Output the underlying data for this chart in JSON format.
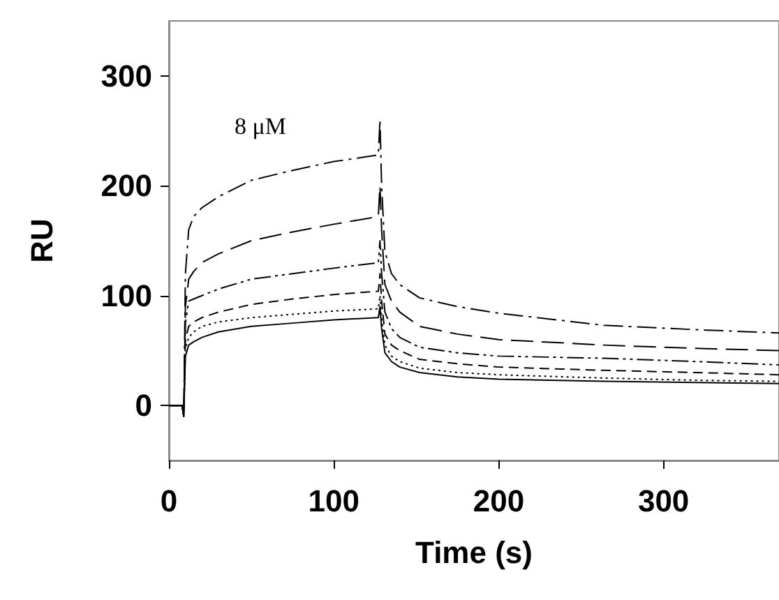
{
  "chart_data": {
    "type": "line",
    "xlabel": "Time (s)",
    "ylabel": "RU",
    "x": [
      0,
      8,
      9,
      10,
      12,
      15,
      20,
      30,
      50,
      75,
      100,
      127,
      128,
      129,
      131,
      135,
      140,
      152,
      175,
      200,
      264,
      320,
      370
    ],
    "series": [
      {
        "color": "#000000",
        "line_style": "dashdot",
        "values": [
          0,
          0,
          -10,
          120,
          160,
          172,
          180,
          190,
          205,
          214,
          222,
          228,
          260,
          200,
          140,
          120,
          110,
          98,
          90,
          84,
          73,
          69,
          66
        ]
      },
      {
        "color": "#000000",
        "line_style": "longdash",
        "values": [
          0,
          0,
          -10,
          90,
          115,
          122,
          130,
          138,
          150,
          158,
          165,
          172,
          200,
          160,
          110,
          95,
          85,
          72,
          65,
          60,
          55,
          52,
          50
        ]
      },
      {
        "color": "#000000",
        "line_style": "dashdotdot",
        "values": [
          0,
          0,
          -10,
          75,
          95,
          97,
          100,
          106,
          115,
          120,
          125,
          130,
          150,
          120,
          85,
          70,
          62,
          53,
          48,
          45,
          43,
          40,
          37
        ]
      },
      {
        "color": "#000000",
        "line_style": "dashed",
        "values": [
          0,
          0,
          -10,
          60,
          72,
          76,
          80,
          85,
          92,
          97,
          101,
          104,
          120,
          95,
          65,
          55,
          50,
          42,
          38,
          35,
          32,
          30,
          28
        ]
      },
      {
        "color": "#000000",
        "line_style": "dotted",
        "values": [
          0,
          0,
          -10,
          52,
          62,
          67,
          72,
          76,
          80,
          83,
          86,
          88,
          100,
          80,
          55,
          45,
          40,
          34,
          30,
          28,
          25,
          23,
          22
        ]
      },
      {
        "color": "#000000",
        "line_style": "solid",
        "values": [
          0,
          0,
          -10,
          45,
          55,
          58,
          62,
          67,
          72,
          75,
          78,
          80,
          90,
          70,
          48,
          40,
          35,
          30,
          26,
          24,
          22,
          21,
          20
        ]
      }
    ],
    "annotations": [
      "8 μM"
    ],
    "xlim": [
      0,
      370
    ],
    "xticks": [
      0,
      100,
      200,
      300
    ],
    "ylim": [
      -50,
      350
    ],
    "yticks": [
      0,
      100,
      200,
      300
    ],
    "grid": false,
    "marker": "none"
  }
}
